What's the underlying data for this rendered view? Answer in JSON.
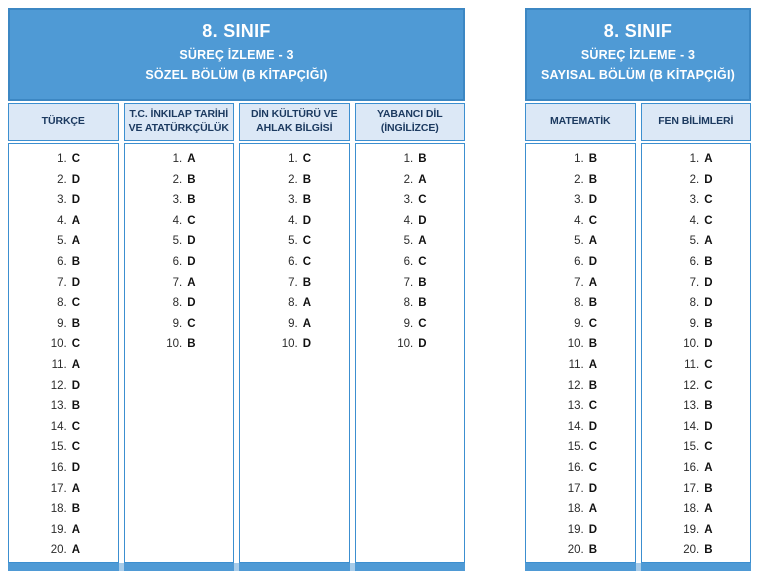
{
  "colors": {
    "primary_blue": "#4f9ad5",
    "border_blue": "#3c8fd0",
    "header_border_blue": "#3c87c3",
    "light_blue_cell": "#dce8f6",
    "footer_gap_blue": "#a6cbe9",
    "navy_text": "#1c3a60",
    "answer_text": "#111111"
  },
  "panels": [
    {
      "title": "8. SINIF",
      "subtitle1": "SÜREÇ İZLEME - 3",
      "subtitle2": "SÖZEL BÖLÜM (B KİTAPÇIĞI)",
      "columns": [
        {
          "header": "TÜRKÇE",
          "answers": [
            "C",
            "D",
            "D",
            "A",
            "A",
            "B",
            "D",
            "C",
            "B",
            "C",
            "A",
            "D",
            "B",
            "C",
            "C",
            "D",
            "A",
            "B",
            "A",
            "A"
          ]
        },
        {
          "header": "T.C. İNKILAP TARİHİ\nVE ATATÜRKÇÜLÜK",
          "answers": [
            "A",
            "B",
            "B",
            "C",
            "D",
            "D",
            "A",
            "D",
            "C",
            "B"
          ]
        },
        {
          "header": "DİN KÜLTÜRÜ VE\nAHLAK BİLGİSİ",
          "answers": [
            "C",
            "B",
            "B",
            "D",
            "C",
            "C",
            "B",
            "A",
            "A",
            "D"
          ]
        },
        {
          "header": "YABANCI DİL\n(İNGİLİZCE)",
          "answers": [
            "B",
            "A",
            "C",
            "D",
            "A",
            "C",
            "B",
            "B",
            "C",
            "D"
          ]
        }
      ]
    },
    {
      "title": "8. SINIF",
      "subtitle1": "SÜREÇ İZLEME - 3",
      "subtitle2": "SAYISAL BÖLÜM (B KİTAPÇIĞI)",
      "columns": [
        {
          "header": "MATEMATİK",
          "answers": [
            "B",
            "B",
            "D",
            "C",
            "A",
            "D",
            "A",
            "B",
            "C",
            "B",
            "A",
            "B",
            "C",
            "D",
            "C",
            "C",
            "D",
            "A",
            "D",
            "B"
          ]
        },
        {
          "header": "FEN BİLİMLERİ",
          "answers": [
            "A",
            "D",
            "C",
            "C",
            "A",
            "B",
            "D",
            "D",
            "B",
            "D",
            "C",
            "C",
            "B",
            "D",
            "C",
            "A",
            "B",
            "A",
            "A",
            "B"
          ]
        }
      ]
    }
  ]
}
